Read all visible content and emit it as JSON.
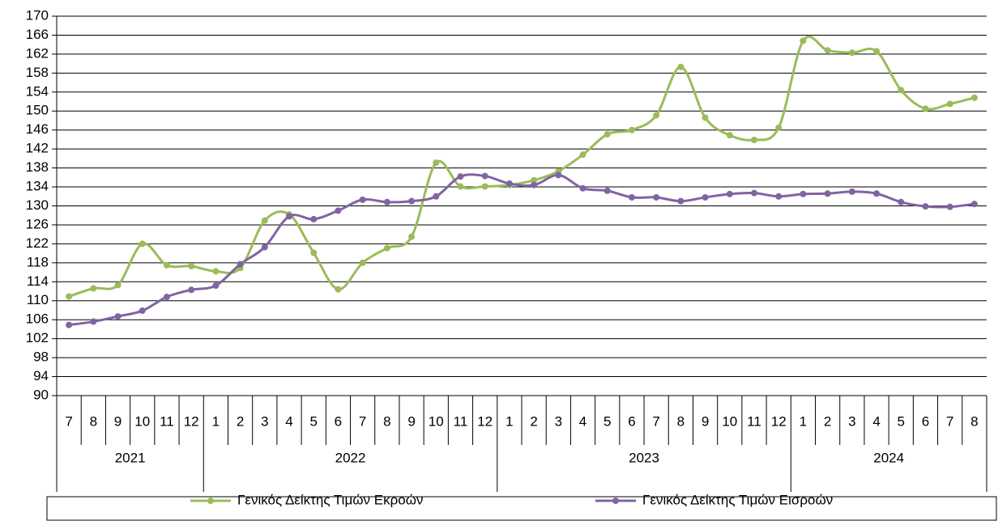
{
  "chart_data": {
    "type": "line",
    "smooth": true,
    "grid": true,
    "categories": [
      "7",
      "8",
      "9",
      "10",
      "11",
      "12",
      "1",
      "2",
      "3",
      "4",
      "5",
      "6",
      "7",
      "8",
      "9",
      "10",
      "11",
      "12",
      "1",
      "2",
      "3",
      "4",
      "5",
      "6",
      "7",
      "8",
      "9",
      "10",
      "11",
      "12",
      "1",
      "2",
      "3",
      "4",
      "5",
      "6",
      "7",
      "8"
    ],
    "category_years": [
      "2021",
      "2021",
      "2021",
      "2021",
      "2021",
      "2021",
      "2022",
      "2022",
      "2022",
      "2022",
      "2022",
      "2022",
      "2022",
      "2022",
      "2022",
      "2022",
      "2022",
      "2022",
      "2023",
      "2023",
      "2023",
      "2023",
      "2023",
      "2023",
      "2023",
      "2023",
      "2023",
      "2023",
      "2023",
      "2023",
      "2024",
      "2024",
      "2024",
      "2024",
      "2024",
      "2024",
      "2024",
      "2024"
    ],
    "ylim": [
      90,
      170
    ],
    "yticks": [
      90,
      94,
      98,
      102,
      106,
      110,
      114,
      118,
      122,
      126,
      130,
      134,
      138,
      142,
      146,
      150,
      154,
      158,
      162,
      166,
      170
    ],
    "legend": "bottom",
    "series": [
      {
        "name": "Γενικός Δείκτης Τιμών Εκροών",
        "color": "#9bbb59",
        "values": [
          110.9,
          112.6,
          113.3,
          122,
          117.5,
          117.3,
          116.2,
          116.9,
          126.9,
          128.2,
          120.1,
          112.4,
          118,
          121.1,
          123.5,
          139.1,
          134.1,
          134.1,
          134.4,
          135.4,
          137.3,
          140.8,
          145.1,
          146,
          149.1,
          159.3,
          148.6,
          144.9,
          143.9,
          146.5,
          164.8,
          162.8,
          162.3,
          162.6,
          154.4,
          150.5,
          151.5,
          152.8
        ]
      },
      {
        "name": "Γενικός Δείκτης Τιμών Εισροών",
        "color": "#8064a2",
        "values": [
          104.9,
          105.6,
          106.7,
          107.9,
          110.8,
          112.3,
          113.2,
          117.7,
          121.3,
          127.8,
          127.2,
          129,
          131.3,
          130.8,
          131,
          132,
          136.2,
          136.3,
          134.7,
          134.4,
          136.5,
          133.7,
          133.2,
          131.8,
          131.8,
          131,
          131.8,
          132.5,
          132.7,
          132,
          132.5,
          132.6,
          133,
          132.6,
          130.8,
          129.9,
          129.8,
          130.4
        ]
      }
    ]
  }
}
